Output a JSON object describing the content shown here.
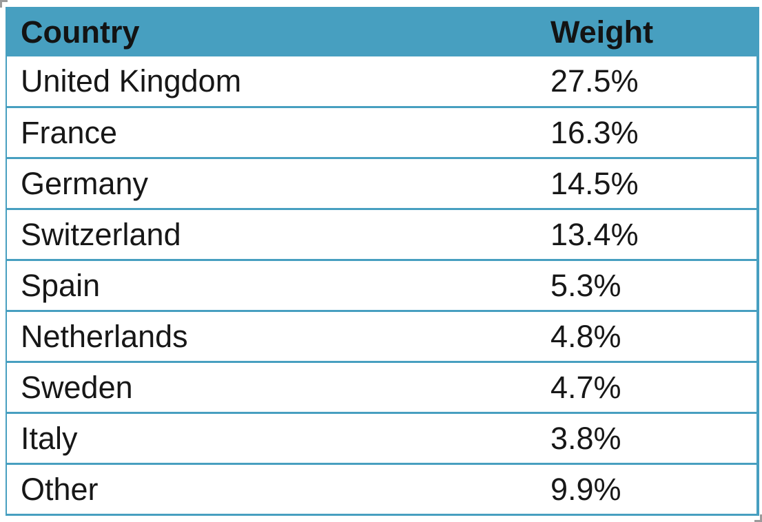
{
  "colors": {
    "accent_teal": "#479FC0",
    "text": "#171717",
    "crop_mark_gray": "#9b9b9b"
  },
  "table": {
    "header": {
      "country": "Country",
      "weight": "Weight"
    },
    "rows": [
      {
        "country": "United Kingdom",
        "weight": "27.5%"
      },
      {
        "country": "France",
        "weight": "16.3%"
      },
      {
        "country": "Germany",
        "weight": "14.5%"
      },
      {
        "country": "Switzerland",
        "weight": "13.4%"
      },
      {
        "country": "Spain",
        "weight": "5.3%"
      },
      {
        "country": "Netherlands",
        "weight": "4.8%"
      },
      {
        "country": "Sweden",
        "weight": "4.7%"
      },
      {
        "country": "Italy",
        "weight": "3.8%"
      },
      {
        "country": "Other",
        "weight": "9.9%"
      }
    ]
  },
  "chart_data": {
    "type": "table",
    "title": "",
    "columns": [
      "Country",
      "Weight"
    ],
    "categories": [
      "United Kingdom",
      "France",
      "Germany",
      "Switzerland",
      "Spain",
      "Netherlands",
      "Sweden",
      "Italy",
      "Other"
    ],
    "values": [
      27.5,
      16.3,
      14.5,
      13.4,
      5.3,
      4.8,
      4.7,
      3.8,
      9.9
    ],
    "value_format": "percent"
  }
}
